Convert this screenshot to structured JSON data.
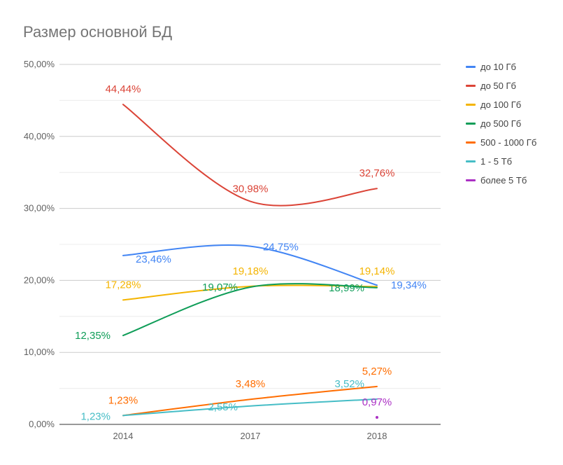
{
  "title": "Размер основной БД",
  "chart_data": {
    "type": "line",
    "title": "Размер основной БД",
    "categories": [
      "2014",
      "2017",
      "2018"
    ],
    "ylim": [
      0,
      50
    ],
    "yticks": [
      "0,00%",
      "10,00%",
      "20,00%",
      "30,00%",
      "40,00%",
      "50,00%"
    ],
    "legend_position": "right",
    "series": [
      {
        "name": "до 10 Гб",
        "color": "#4285f4",
        "values": [
          23.46,
          24.75,
          19.34
        ],
        "labels": [
          "23,46%",
          "24,75%",
          "19,34%"
        ]
      },
      {
        "name": "до 50 Гб",
        "color": "#db4437",
        "values": [
          44.44,
          30.98,
          32.76
        ],
        "labels": [
          "44,44%",
          "30,98%",
          "32,76%"
        ]
      },
      {
        "name": "до 100 Гб",
        "color": "#f4b400",
        "values": [
          17.28,
          19.18,
          19.14
        ],
        "labels": [
          "17,28%",
          "19,18%",
          "19,14%"
        ]
      },
      {
        "name": "до 500 Гб",
        "color": "#0f9d58",
        "values": [
          12.35,
          19.07,
          18.99
        ],
        "labels": [
          "12,35%",
          "19,07%",
          "18,99%"
        ]
      },
      {
        "name": "500 - 1000 Гб",
        "color": "#ff6d00",
        "values": [
          1.23,
          3.48,
          5.27
        ],
        "labels": [
          "1,23%",
          "3,48%",
          "5,27%"
        ]
      },
      {
        "name": "1 - 5 Тб",
        "color": "#46bdc6",
        "values": [
          1.23,
          2.55,
          3.52
        ],
        "labels": [
          "1,23%",
          "2,55%",
          "3,52%"
        ]
      },
      {
        "name": "более 5 Тб",
        "color": "#ab30c4",
        "values": [
          null,
          null,
          0.97
        ],
        "labels": [
          "",
          "",
          "0,97%"
        ]
      }
    ]
  }
}
